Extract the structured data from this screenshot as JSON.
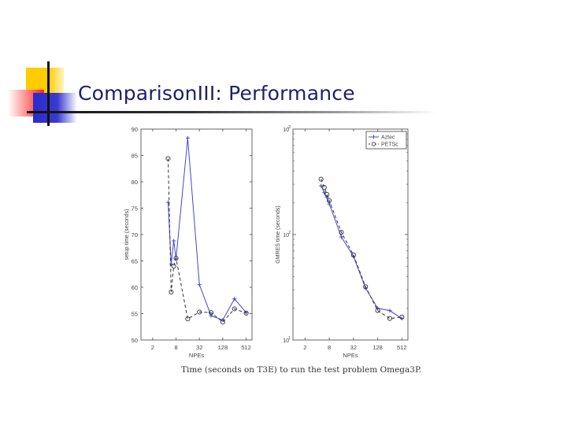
{
  "slide": {
    "title": "ComparisonIII: Performance",
    "caption": "Time (seconds on T3E) to run the test problem Omega3P."
  },
  "colors": {
    "title": "#1e1e6e",
    "aztec": "#4444dd",
    "petsc": "#333333"
  },
  "chart_data": [
    {
      "type": "line",
      "title": "",
      "xlabel": "NPEs",
      "ylabel": "setup time (seconds)",
      "xscale": "log2",
      "yscale": "linear",
      "ylim": [
        50,
        90
      ],
      "xticks": [
        "2",
        "8",
        "32",
        "128",
        "512"
      ],
      "yticks": [
        "50",
        "55",
        "60",
        "65",
        "70",
        "75",
        "80",
        "85",
        "90"
      ],
      "grid": false,
      "x": [
        5,
        6,
        7,
        8,
        16,
        32,
        64,
        128,
        256,
        512
      ],
      "series": [
        {
          "name": "Aztec",
          "style": "solid, + markers",
          "values": [
            76.1,
            64.4,
            68.8,
            65.4,
            88.3,
            60.5,
            54.6,
            53.8,
            57.8,
            55.2
          ]
        },
        {
          "name": "PETSc",
          "style": "dashed, o markers",
          "values": [
            84.4,
            59.1,
            64.0,
            65.5,
            54.0,
            55.3,
            55.2,
            53.4,
            55.9,
            55.1
          ]
        }
      ]
    },
    {
      "type": "line",
      "title": "",
      "xlabel": "NPEs",
      "ylabel": "GMRES time (seconds)",
      "xscale": "log2",
      "yscale": "log10",
      "ylim": [
        10,
        1000
      ],
      "xticks": [
        "2",
        "8",
        "32",
        "128",
        "512"
      ],
      "yticks": [
        "10^1",
        "10^2",
        "10^3"
      ],
      "grid": false,
      "legend": {
        "position": "upper right",
        "entries": [
          "Aztec",
          "PETSc"
        ]
      },
      "x": [
        5,
        6,
        7,
        8,
        16,
        32,
        64,
        128,
        256,
        512
      ],
      "series": [
        {
          "name": "Aztec",
          "style": "solid, + markers",
          "values": [
            290,
            250,
            225,
            195,
            95,
            62,
            31,
            20,
            19,
            16
          ]
        },
        {
          "name": "PETSc",
          "style": "dashed, o markers",
          "values": [
            335,
            280,
            240,
            210,
            105,
            64,
            32,
            19,
            16,
            16.5
          ]
        }
      ]
    }
  ]
}
